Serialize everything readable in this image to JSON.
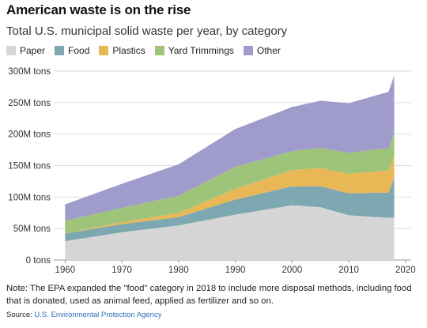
{
  "header": {
    "title": "American waste is on the rise",
    "subtitle": "Total U.S. municipal solid waste per year, by category"
  },
  "legend": [
    {
      "label": "Paper",
      "color": "#d6d6d6"
    },
    {
      "label": "Food",
      "color": "#7ea8b1"
    },
    {
      "label": "Plastics",
      "color": "#e8b856"
    },
    {
      "label": "Yard Trimmings",
      "color": "#9ec47a"
    },
    {
      "label": "Other",
      "color": "#9f9bcb"
    }
  ],
  "footer": {
    "note": "Note: The EPA expanded the \"food\" category in 2018 to include more disposal methods, including food that is donated, used as animal feed, applied as fertilizer and so on.",
    "source_prefix": "Source:",
    "source_link": "U.S. Environmental Protection Agency"
  },
  "chart_data": {
    "type": "area",
    "stacked": true,
    "x": [
      1960,
      1970,
      1980,
      1990,
      2000,
      2005,
      2010,
      2015,
      2017,
      2018
    ],
    "series": [
      {
        "name": "Paper",
        "color": "#d6d6d6",
        "values": [
          30,
          44,
          55,
          72,
          87,
          84,
          71,
          68,
          67,
          67
        ]
      },
      {
        "name": "Food",
        "color": "#7ea8b1",
        "values": [
          12,
          13,
          13,
          24,
          30,
          33,
          35,
          39,
          40,
          63
        ]
      },
      {
        "name": "Plastics",
        "color": "#e8b856",
        "values": [
          0.4,
          3,
          7,
          17,
          26,
          29,
          31,
          34,
          35,
          36
        ]
      },
      {
        "name": "Yard Trimmings",
        "color": "#9ec47a",
        "values": [
          20,
          23,
          27,
          35,
          30,
          32,
          33,
          35,
          35,
          35
        ]
      },
      {
        "name": "Other",
        "color": "#9f9bcb",
        "values": [
          26,
          38,
          50,
          60,
          70,
          75,
          79,
          86,
          90,
          92
        ]
      }
    ],
    "x_ticks": [
      1960,
      1970,
      1980,
      1990,
      2000,
      2010,
      2020
    ],
    "y_ticks": [
      0,
      50,
      100,
      150,
      200,
      250,
      300
    ],
    "y_tick_labels": [
      "0 tons",
      "50M tons",
      "100M tons",
      "150M tons",
      "200M tons",
      "250M tons",
      "300M tons"
    ],
    "xlim": [
      1958,
      2021
    ],
    "ylim": [
      0,
      300
    ],
    "grid": true
  }
}
